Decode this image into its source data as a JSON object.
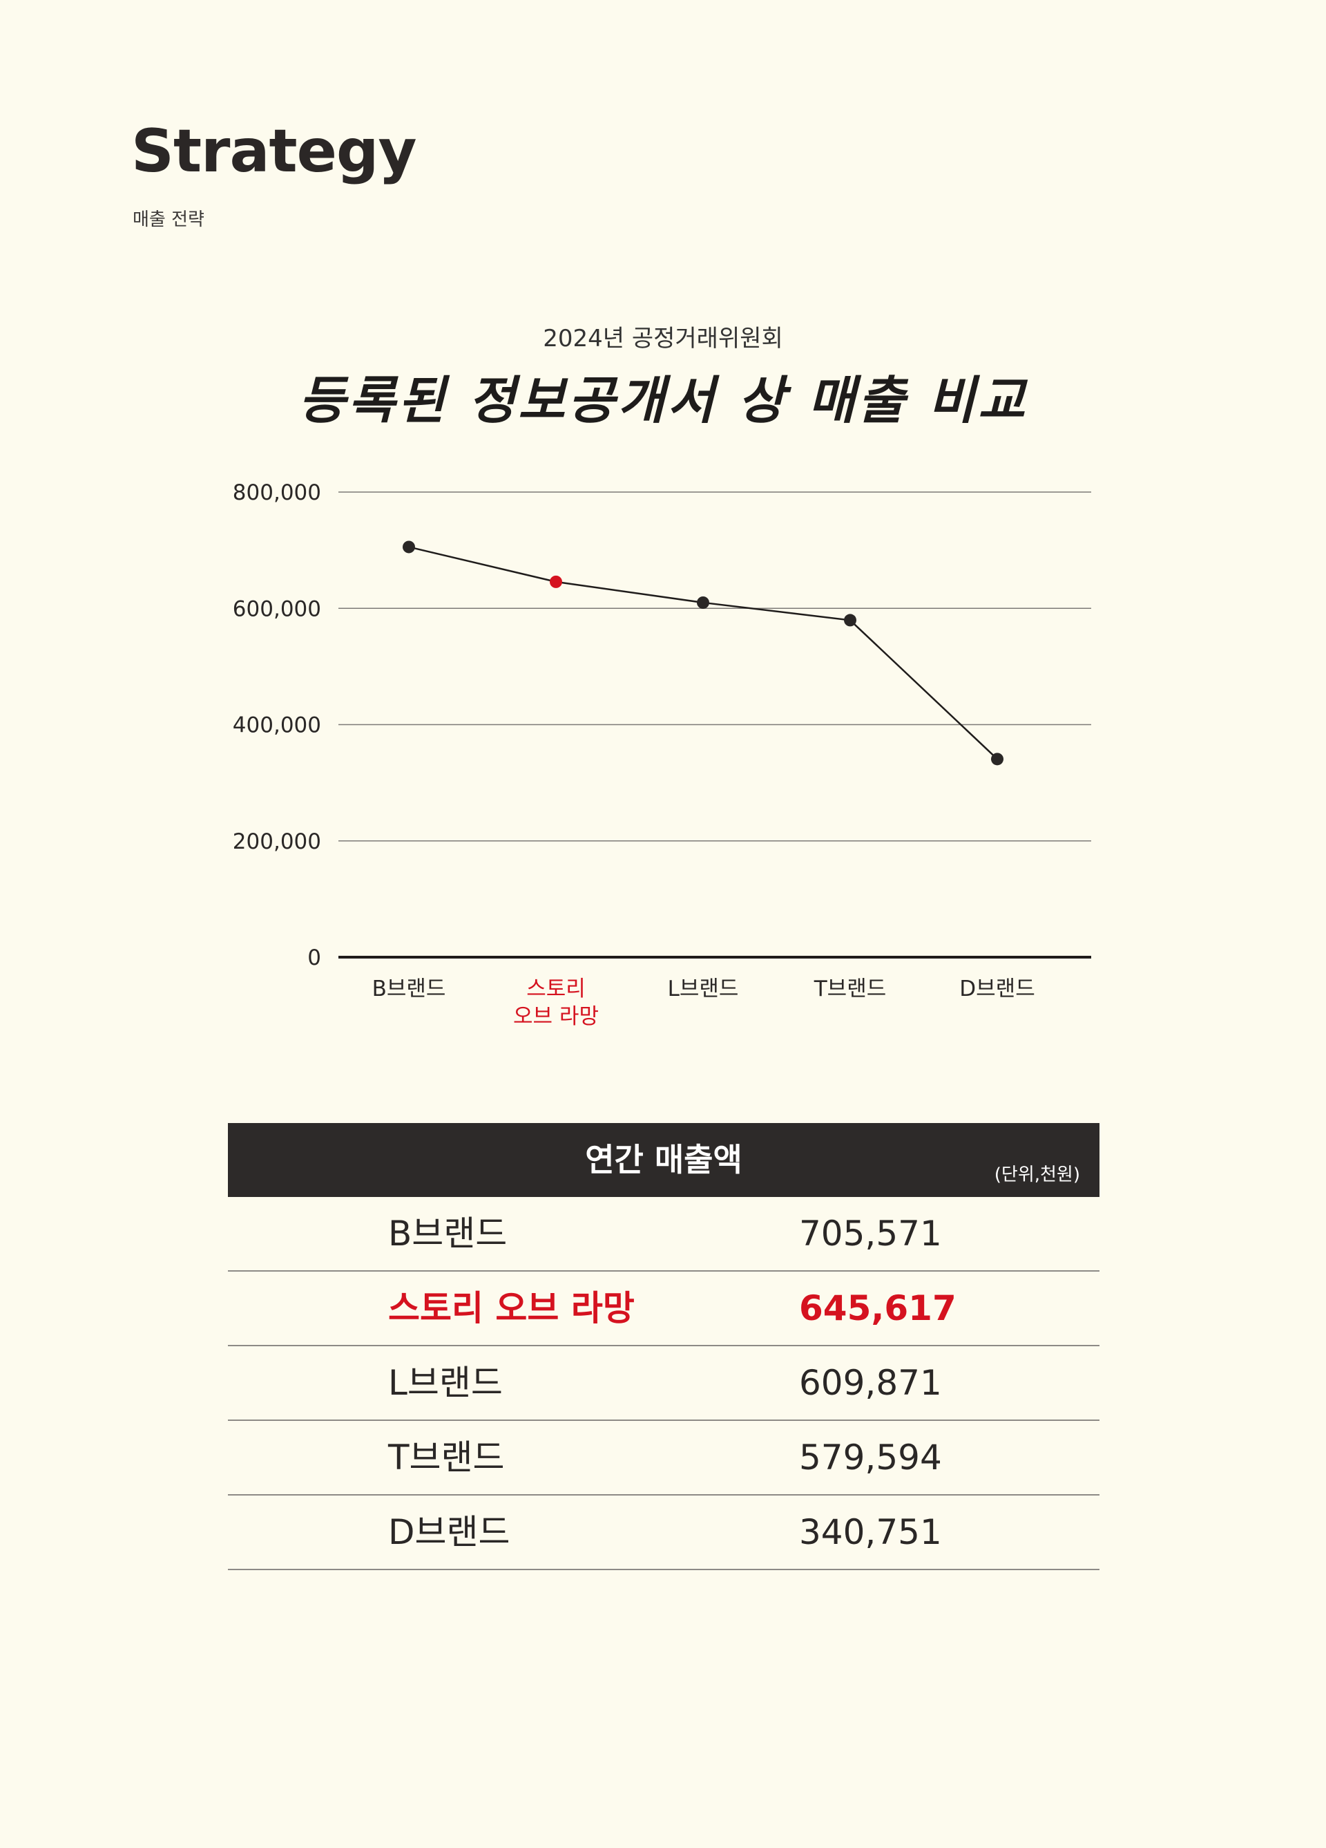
{
  "header": {
    "title": "Strategy",
    "subtitle": "매출 전략"
  },
  "chart": {
    "kicker": "2024년 공정거래위원회",
    "title": "등록된 정보공개서 상 매출 비교"
  },
  "colors": {
    "background": "#fdfbee",
    "text": "#2a2726",
    "highlight": "#d5121f",
    "table_header": "#2d2a29"
  },
  "chart_data": {
    "type": "line",
    "categories": [
      "B브랜드",
      "스토리\n오브 라망",
      "L브랜드",
      "T브랜드",
      "D브랜드"
    ],
    "values": [
      705571,
      645617,
      609871,
      579594,
      340751
    ],
    "highlight_index": 1,
    "ylim": [
      0,
      800000
    ],
    "yticks": [
      0,
      200000,
      400000,
      600000,
      800000
    ],
    "ytick_labels": [
      "0",
      "200,000",
      "400,000",
      "600,000",
      "800,000"
    ],
    "grid": true,
    "xlabel": "",
    "ylabel": ""
  },
  "table": {
    "title": "연간 매출액",
    "unit": "(단위,천원)",
    "rows": [
      {
        "name": "B브랜드",
        "value": "705,571"
      },
      {
        "name": "스토리 오브 라망",
        "value": "645,617"
      },
      {
        "name": "L브랜드",
        "value": "609,871"
      },
      {
        "name": "T브랜드",
        "value": "579,594"
      },
      {
        "name": "D브랜드",
        "value": "340,751"
      }
    ]
  }
}
